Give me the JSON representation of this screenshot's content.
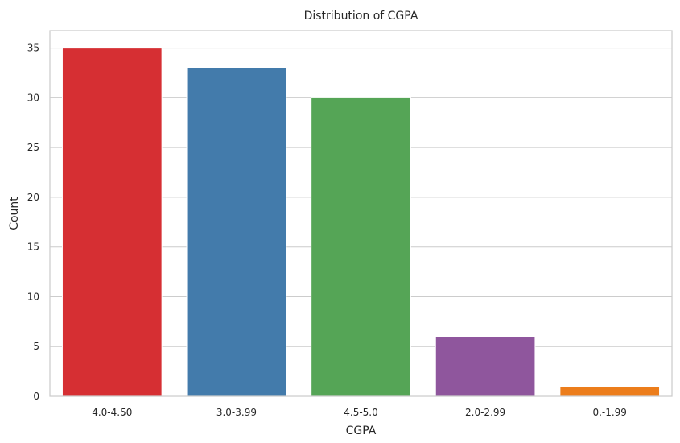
{
  "chart_data": {
    "type": "bar",
    "title": "Distribution of CGPA",
    "xlabel": "CGPA",
    "ylabel": "Count",
    "categories": [
      "4.0-4.50",
      "3.0-3.99",
      "4.5-5.0",
      "2.0-2.99",
      "0.-1.99"
    ],
    "values": [
      35,
      33,
      30,
      6,
      1
    ],
    "colors": [
      "#d62f33",
      "#437bab",
      "#55a556",
      "#8f569d",
      "#ec7d1b"
    ],
    "ylim": [
      0,
      36.75
    ],
    "yticks": [
      0,
      5,
      10,
      15,
      20,
      25,
      30,
      35
    ],
    "grid": true,
    "legend": "none"
  }
}
